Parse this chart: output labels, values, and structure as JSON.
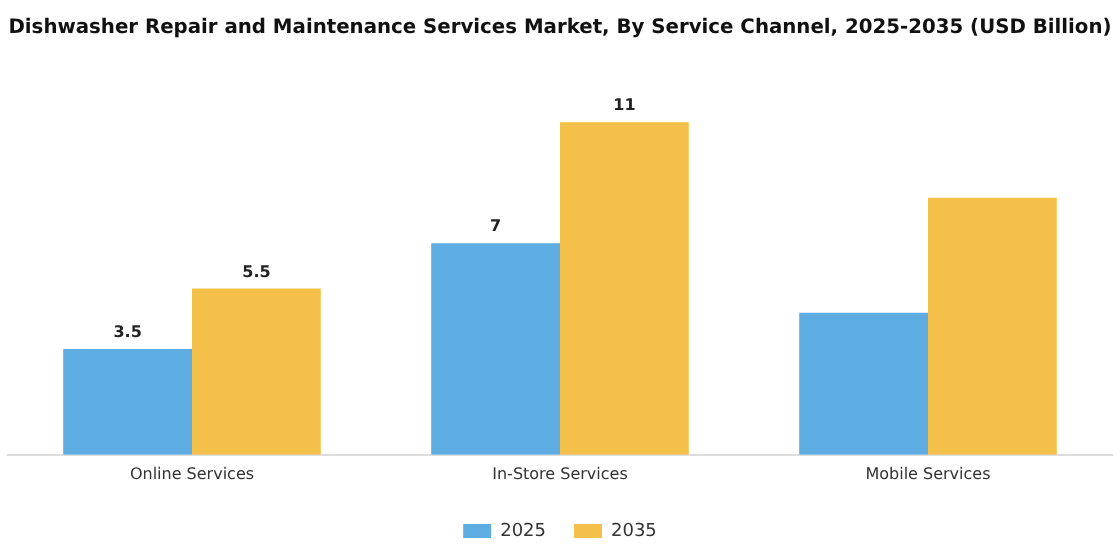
{
  "chart_data": {
    "type": "bar",
    "title": "Dishwasher Repair and Maintenance Services Market, By Service Channel, 2025-2035 (USD Billion)",
    "categories": [
      "Online Services",
      "In-Store Services",
      "Mobile Services"
    ],
    "series": [
      {
        "name": "2025",
        "color": "#5dade2",
        "values": [
          3.5,
          7,
          4.7
        ],
        "value_labels": [
          "3.5",
          "7",
          null
        ]
      },
      {
        "name": "2035",
        "color": "#f5c04a",
        "values": [
          5.5,
          11,
          8.5
        ],
        "value_labels": [
          "5.5",
          "11",
          null
        ]
      }
    ],
    "legend": "bottom",
    "grid": false
  }
}
